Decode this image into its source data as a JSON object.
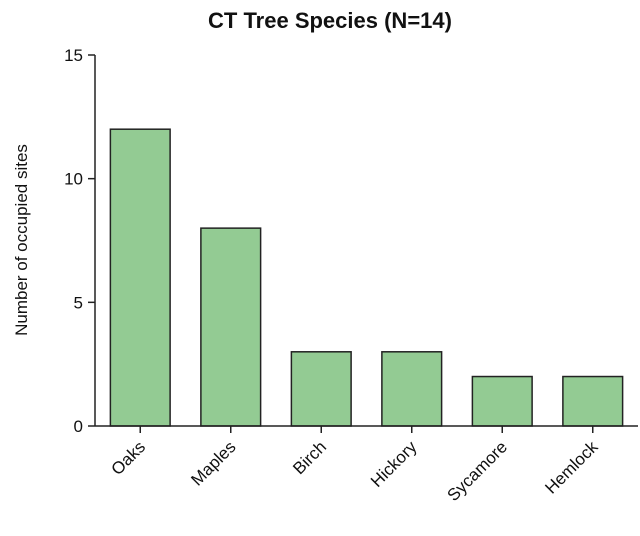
{
  "chart_data": {
    "type": "bar",
    "title": "CT Tree Species (N=14)",
    "y_label": "Number of occupied sites",
    "categories": [
      "Oaks",
      "Maples",
      "Birch",
      "Hickory",
      "Sycamore",
      "Hemlock"
    ],
    "values": [
      12,
      8,
      3,
      3,
      2,
      2
    ],
    "color": "#93cb93",
    "ylim": [
      0,
      15
    ],
    "yticks": [
      0,
      5,
      10,
      15
    ],
    "grid": false
  }
}
